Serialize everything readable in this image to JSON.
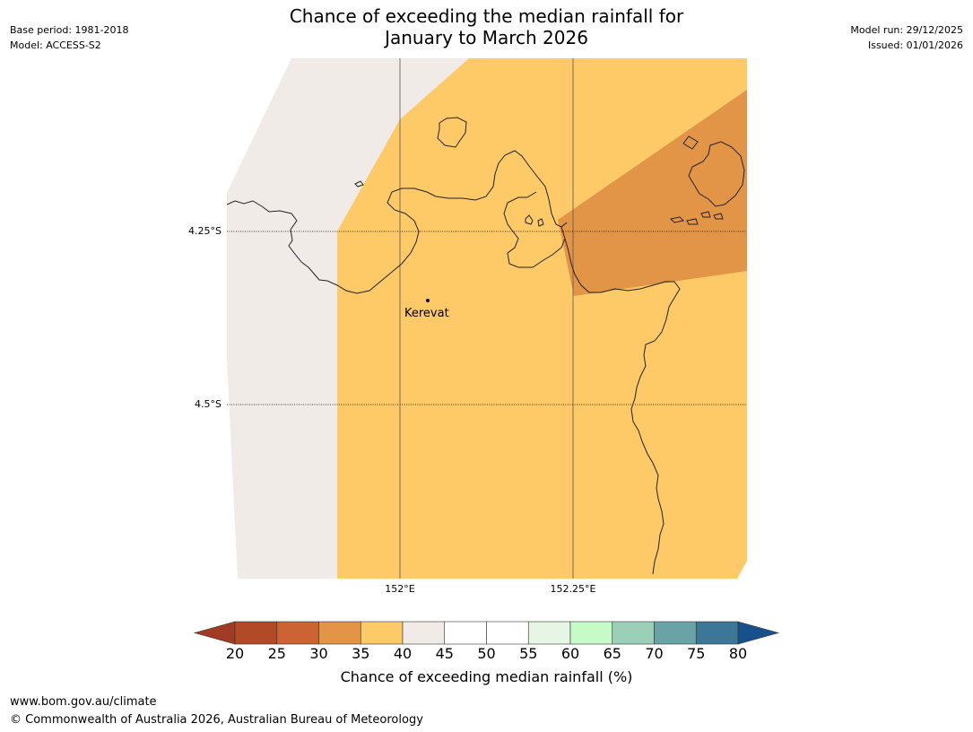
{
  "title": {
    "line1": "Chance of exceeding the median rainfall for",
    "line2": "January to March 2026"
  },
  "meta_left": {
    "base_period": "Base period: 1981-2018",
    "model": "Model: ACCESS-S2"
  },
  "meta_right": {
    "model_run": "Model run: 29/12/2025",
    "issued": "Issued: 01/01/2026"
  },
  "map": {
    "place_label": "Kerevat",
    "lat_labels": [
      "4.25°S",
      "4.5°S"
    ],
    "lon_labels": [
      "152°E",
      "152.25°E"
    ],
    "regions": [
      {
        "category": "40-45",
        "color": "#f0ebe6"
      },
      {
        "category": "35-40",
        "color": "#fdca67"
      },
      {
        "category": "30-35",
        "color": "#e29547"
      }
    ]
  },
  "colorbar": {
    "label": "Chance of exceeding median rainfall (%)",
    "ticks": [
      "20",
      "25",
      "30",
      "35",
      "40",
      "45",
      "50",
      "55",
      "60",
      "65",
      "70",
      "75",
      "80"
    ],
    "colors": [
      "#a23b24",
      "#b14a26",
      "#cb6333",
      "#e29547",
      "#fdca67",
      "#f0ebe6",
      "#ffffff",
      "#ffffff",
      "#e6f5e4",
      "#c6fbc8",
      "#9ccfb8",
      "#6aa3a5",
      "#3d7798",
      "#17508a"
    ]
  },
  "footer": {
    "url": "www.bom.gov.au/climate",
    "copyright": "© Commonwealth of Australia 2026, Australian Bureau of Meteorology"
  }
}
